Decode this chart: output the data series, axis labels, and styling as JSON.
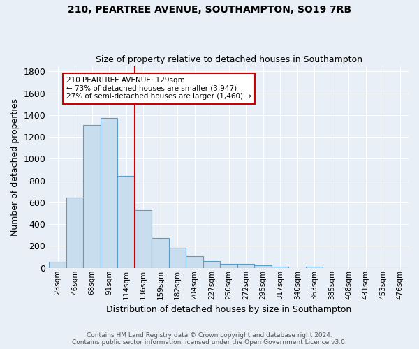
{
  "title": "210, PEARTREE AVENUE, SOUTHAMPTON, SO19 7RB",
  "subtitle": "Size of property relative to detached houses in Southampton",
  "xlabel": "Distribution of detached houses by size in Southampton",
  "ylabel": "Number of detached properties",
  "categories": [
    "23sqm",
    "46sqm",
    "68sqm",
    "91sqm",
    "114sqm",
    "136sqm",
    "159sqm",
    "182sqm",
    "204sqm",
    "227sqm",
    "250sqm",
    "272sqm",
    "295sqm",
    "317sqm",
    "340sqm",
    "363sqm",
    "385sqm",
    "408sqm",
    "431sqm",
    "453sqm",
    "476sqm"
  ],
  "values": [
    55,
    645,
    1310,
    1375,
    845,
    530,
    275,
    185,
    105,
    65,
    38,
    35,
    25,
    12,
    0,
    12,
    0,
    0,
    0,
    0,
    0
  ],
  "bar_color": "#c8dded",
  "bar_edge_color": "#5b9dc9",
  "background_color": "#e8eff6",
  "grid_color": "#ffffff",
  "vline_color": "#cc0000",
  "vline_bar_index": 5,
  "annotation_text": "210 PEARTREE AVENUE: 129sqm\n← 73% of detached houses are smaller (3,947)\n27% of semi-detached houses are larger (1,460) →",
  "annotation_box_color": "#ffffff",
  "annotation_box_edge": "#cc0000",
  "ylim": [
    0,
    1850
  ],
  "yticks": [
    0,
    200,
    400,
    600,
    800,
    1000,
    1200,
    1400,
    1600,
    1800
  ],
  "footer": "Contains HM Land Registry data © Crown copyright and database right 2024.\nContains public sector information licensed under the Open Government Licence v3.0."
}
